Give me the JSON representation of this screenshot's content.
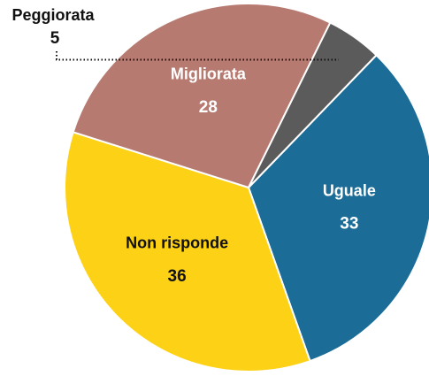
{
  "chart_data": {
    "type": "pie",
    "categories": [
      "Uguale",
      "Non risponde",
      "Migliorata",
      "Peggiorata"
    ],
    "values": [
      33,
      36,
      28,
      5
    ],
    "colors": [
      "#1b6d97",
      "#fcd116",
      "#b77a70",
      "#5b5b5b"
    ]
  }
}
